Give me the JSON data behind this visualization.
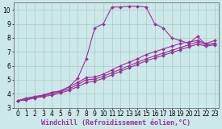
{
  "background_color": "#cce8e8",
  "grid_color": "#aacccc",
  "line_color": "#993399",
  "marker": "D",
  "markersize": 2.0,
  "linewidth": 0.8,
  "xlim": [
    -0.5,
    23.5
  ],
  "ylim": [
    3,
    10.5
  ],
  "xlabel": "Windchill (Refroidissement éolien,°C)",
  "xlabel_fontsize": 6.0,
  "tick_fontsize": 5.5,
  "xticks": [
    0,
    1,
    2,
    3,
    4,
    5,
    6,
    7,
    8,
    9,
    10,
    11,
    12,
    13,
    14,
    15,
    16,
    17,
    18,
    19,
    20,
    21,
    22,
    23
  ],
  "yticks": [
    3,
    4,
    5,
    6,
    7,
    8,
    9,
    10
  ],
  "series": [
    {
      "x": [
        0,
        1,
        2,
        3,
        4,
        5,
        6,
        7,
        8,
        9,
        10,
        11,
        12,
        13,
        14,
        15,
        16,
        17,
        18,
        19,
        20,
        21,
        22,
        23
      ],
      "y": [
        3.5,
        3.7,
        3.8,
        3.9,
        4.1,
        4.2,
        4.5,
        5.1,
        6.5,
        8.7,
        9.0,
        10.2,
        10.2,
        10.25,
        10.25,
        10.2,
        9.0,
        8.7,
        8.0,
        7.8,
        7.6,
        8.1,
        7.5,
        7.6
      ]
    },
    {
      "x": [
        0,
        1,
        2,
        3,
        4,
        5,
        6,
        7,
        8,
        9,
        10,
        11,
        12,
        13,
        14,
        15,
        16,
        17,
        18,
        19,
        20,
        21,
        22,
        23
      ],
      "y": [
        3.5,
        3.6,
        3.8,
        3.9,
        4.1,
        4.2,
        4.5,
        4.8,
        5.15,
        5.2,
        5.4,
        5.7,
        6.0,
        6.25,
        6.5,
        6.8,
        7.0,
        7.2,
        7.4,
        7.6,
        7.7,
        7.8,
        7.6,
        7.8
      ]
    },
    {
      "x": [
        0,
        1,
        2,
        3,
        4,
        5,
        6,
        7,
        8,
        9,
        10,
        11,
        12,
        13,
        14,
        15,
        16,
        17,
        18,
        19,
        20,
        21,
        22,
        23
      ],
      "y": [
        3.5,
        3.6,
        3.75,
        3.85,
        4.0,
        4.15,
        4.35,
        4.65,
        5.0,
        5.05,
        5.25,
        5.5,
        5.75,
        6.0,
        6.25,
        6.5,
        6.7,
        6.9,
        7.1,
        7.3,
        7.5,
        7.7,
        7.5,
        7.6
      ]
    },
    {
      "x": [
        0,
        1,
        2,
        3,
        4,
        5,
        6,
        7,
        8,
        9,
        10,
        11,
        12,
        13,
        14,
        15,
        16,
        17,
        18,
        19,
        20,
        21,
        22,
        23
      ],
      "y": [
        3.5,
        3.55,
        3.7,
        3.8,
        3.9,
        4.05,
        4.25,
        4.5,
        4.8,
        4.9,
        5.1,
        5.35,
        5.6,
        5.85,
        6.1,
        6.35,
        6.55,
        6.75,
        6.95,
        7.15,
        7.35,
        7.55,
        7.4,
        7.5
      ]
    }
  ]
}
